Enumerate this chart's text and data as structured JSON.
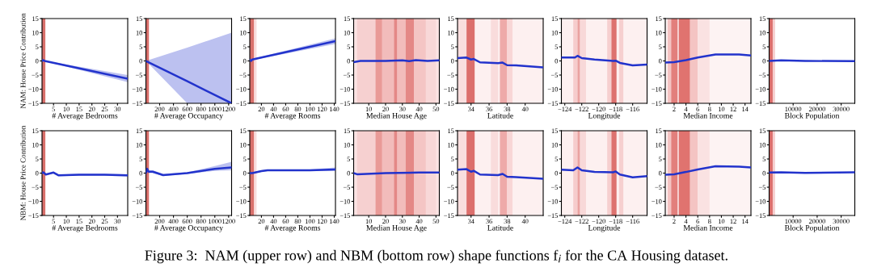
{
  "chart_data": [
    {
      "type": "line",
      "xlabel": "# Average Bedrooms",
      "ylabel": "NAM: House Price Contribution",
      "annotations": [
        "Figure 3:  NAM (upper row) and NBM (bottom row) shape functions f$_{i}$ for the CA Housing dataset."
      ],
      "xlim": [
        0.5,
        34
      ],
      "xticks": [
        5,
        10,
        15,
        20,
        25,
        30
      ],
      "ylim": [
        -15,
        15
      ],
      "yticks": [
        {
          "value": -15,
          "label": "−15"
        },
        {
          "value": -10,
          "label": "−10"
        },
        {
          "value": -5,
          "label": "−5"
        },
        0,
        5,
        10,
        15
      ],
      "bands": [
        {
          "axis": "x",
          "from": 0.5,
          "to": 1.8,
          "color": "#d9706b"
        }
      ],
      "series": [
        {
          "color": "#2233cc",
          "x": [
            0.5,
            1,
            1.5,
            34
          ],
          "values": [
            0,
            0.3,
            0,
            -6.3
          ],
          "lower": [
            0,
            0.2,
            -0.1,
            -7.5
          ],
          "upper": [
            0,
            0.4,
            0.1,
            -5
          ]
        }
      ]
    },
    {
      "type": "line",
      "xlabel": "# Average Occupancy",
      "xlim": [
        0.7,
        1243
      ],
      "xticks": [
        200,
        400,
        600,
        800,
        1000,
        1200
      ],
      "ylim": [
        -15,
        15
      ],
      "yticks": [
        {
          "value": -15,
          "label": "−15"
        },
        {
          "value": -10,
          "label": "−10"
        },
        {
          "value": -5,
          "label": "−5"
        },
        0,
        5,
        10,
        15
      ],
      "bands": [
        {
          "axis": "x",
          "from": 0.7,
          "to": 45,
          "color": "#d9706b"
        }
      ],
      "series": [
        {
          "color": "#2233cc",
          "x": [
            0.7,
            600,
            1243
          ],
          "values": [
            0,
            -7.2,
            -15
          ],
          "lower": [
            0,
            -15,
            -15
          ],
          "upper": [
            0,
            4.7,
            10
          ]
        }
      ]
    },
    {
      "type": "line",
      "xlabel": "# Average Rooms",
      "xlim": [
        0.8,
        142
      ],
      "xticks": [
        20,
        40,
        60,
        80,
        100,
        120,
        140
      ],
      "ylim": [
        -15,
        15
      ],
      "yticks": [
        {
          "value": -15,
          "label": "−15"
        },
        {
          "value": -10,
          "label": "−10"
        },
        {
          "value": -5,
          "label": "−5"
        },
        0,
        5,
        10,
        15
      ],
      "bands": [
        {
          "axis": "x",
          "from": 0.8,
          "to": 8,
          "color": "#d9706b"
        },
        {
          "axis": "x",
          "from": 8,
          "to": 12,
          "color": "#f8dcdc"
        }
      ],
      "series": [
        {
          "color": "#2233cc",
          "x": [
            0.8,
            3,
            5,
            142
          ],
          "values": [
            0.5,
            0,
            0.5,
            7
          ],
          "lower": [
            0.3,
            -0.2,
            0.3,
            6
          ],
          "upper": [
            0.7,
            0.2,
            0.7,
            8
          ]
        }
      ]
    },
    {
      "type": "line",
      "xlabel": "Median House Age",
      "xlim": [
        1,
        52
      ],
      "xticks": [
        10,
        20,
        30,
        40,
        50
      ],
      "ylim": [
        -15,
        15
      ],
      "yticks": [
        {
          "value": -15,
          "label": "−15"
        },
        {
          "value": -10,
          "label": "−10"
        },
        {
          "value": -5,
          "label": "−5"
        },
        0,
        5,
        10,
        15
      ],
      "bands": [
        {
          "axis": "x",
          "from": 1,
          "to": 52,
          "color": "#fbe4e4"
        },
        {
          "axis": "x",
          "from": 3,
          "to": 14,
          "color": "#f6d0d0"
        },
        {
          "axis": "x",
          "from": 14,
          "to": 18,
          "color": "#e99a97"
        },
        {
          "axis": "x",
          "from": 18,
          "to": 25,
          "color": "#f2bcbb"
        },
        {
          "axis": "x",
          "from": 25,
          "to": 27,
          "color": "#e48886"
        },
        {
          "axis": "x",
          "from": 27,
          "to": 32,
          "color": "#f2bcbb"
        },
        {
          "axis": "x",
          "from": 32,
          "to": 37,
          "color": "#e48886"
        },
        {
          "axis": "x",
          "from": 37,
          "to": 44,
          "color": "#f4c5c4"
        },
        {
          "axis": "x",
          "from": 44,
          "to": 50,
          "color": "#f8d8d8"
        }
      ],
      "series": [
        {
          "color": "#2233cc",
          "x": [
            1,
            5,
            20,
            30,
            34,
            38,
            45,
            52
          ],
          "values": [
            -0.4,
            0,
            0,
            0.2,
            -0.1,
            0.3,
            0,
            0.2
          ]
        }
      ]
    },
    {
      "type": "line",
      "xlabel": "Latitude",
      "xlim": [
        32.5,
        42
      ],
      "xticks": [
        34,
        36,
        38,
        40
      ],
      "ylim": [
        -15,
        15
      ],
      "yticks": [
        {
          "value": -15,
          "label": "−15"
        },
        {
          "value": -10,
          "label": "−10"
        },
        {
          "value": -5,
          "label": "−5"
        },
        0,
        5,
        10,
        15
      ],
      "bands": [
        {
          "axis": "x",
          "from": 32.5,
          "to": 42,
          "color": "#fdf0f0"
        },
        {
          "axis": "x",
          "from": 32.5,
          "to": 33.5,
          "color": "#f9dede"
        },
        {
          "axis": "x",
          "from": 33.5,
          "to": 34.4,
          "color": "#dc6f6c"
        },
        {
          "axis": "x",
          "from": 36.2,
          "to": 37,
          "color": "#f9dcdc"
        },
        {
          "axis": "x",
          "from": 37.2,
          "to": 38,
          "color": "#eeaaa9"
        },
        {
          "axis": "x",
          "from": 38,
          "to": 38.6,
          "color": "#f8d6d6"
        }
      ],
      "series": [
        {
          "color": "#2233cc",
          "x": [
            32.5,
            33.5,
            34,
            34.3,
            35,
            37,
            37.5,
            38,
            39,
            42
          ],
          "values": [
            1,
            1.2,
            0.5,
            0.7,
            -0.5,
            -0.8,
            -0.6,
            -1.5,
            -1.6,
            -2.3
          ]
        }
      ]
    },
    {
      "type": "line",
      "xlabel": "Longitude",
      "xlim": [
        -124.4,
        -114.3
      ],
      "xticks": [
        {
          "value": -124,
          "label": "−124"
        },
        {
          "value": -122,
          "label": "−122"
        },
        {
          "value": -120,
          "label": "−120"
        },
        {
          "value": -118,
          "label": "−118"
        },
        {
          "value": -116,
          "label": "−116"
        }
      ],
      "ylim": [
        -15,
        15
      ],
      "yticks": [
        {
          "value": -15,
          "label": "−15"
        },
        {
          "value": -10,
          "label": "−10"
        },
        {
          "value": -5,
          "label": "−5"
        },
        0,
        5,
        10,
        15
      ],
      "bands": [
        {
          "axis": "x",
          "from": -124.4,
          "to": -114.3,
          "color": "#fdf0f0"
        },
        {
          "axis": "x",
          "from": -123,
          "to": -122.5,
          "color": "#f6cccc"
        },
        {
          "axis": "x",
          "from": -122.5,
          "to": -122.2,
          "color": "#eaa2a0"
        },
        {
          "axis": "x",
          "from": -122.2,
          "to": -121.5,
          "color": "#f8d8d8"
        },
        {
          "axis": "x",
          "from": -119,
          "to": -118.5,
          "color": "#f6cfcf"
        },
        {
          "axis": "x",
          "from": -118.5,
          "to": -117.9,
          "color": "#dd726f"
        },
        {
          "axis": "x",
          "from": -117.6,
          "to": -117.1,
          "color": "#f6cfcf"
        }
      ],
      "series": [
        {
          "color": "#2233cc",
          "x": [
            -124.4,
            -122.8,
            -122.5,
            -122,
            -120.5,
            -118.3,
            -118,
            -117.5,
            -116,
            -114.3
          ],
          "values": [
            1.2,
            1.2,
            1.8,
            1,
            0.5,
            0,
            0.1,
            -0.7,
            -1.6,
            -1.3
          ]
        }
      ]
    },
    {
      "type": "line",
      "xlabel": "Median Income",
      "xlim": [
        0.5,
        15
      ],
      "xticks": [
        2,
        4,
        6,
        8,
        10,
        12,
        14
      ],
      "ylim": [
        -15,
        15
      ],
      "yticks": [
        {
          "value": -15,
          "label": "−15"
        },
        {
          "value": -10,
          "label": "−10"
        },
        {
          "value": -5,
          "label": "−5"
        },
        0,
        5,
        10,
        15
      ],
      "bands": [
        {
          "axis": "x",
          "from": 0.5,
          "to": 15,
          "color": "#fdf3f3"
        },
        {
          "axis": "x",
          "from": 0.9,
          "to": 1.5,
          "color": "#f4c4c3"
        },
        {
          "axis": "x",
          "from": 1.5,
          "to": 2.6,
          "color": "#e27f7c"
        },
        {
          "axis": "x",
          "from": 2.6,
          "to": 2.8,
          "color": "#f8d8d8"
        },
        {
          "axis": "x",
          "from": 2.8,
          "to": 4.7,
          "color": "#e0736f"
        },
        {
          "axis": "x",
          "from": 4.7,
          "to": 6,
          "color": "#f4c4c3"
        },
        {
          "axis": "x",
          "from": 6,
          "to": 8,
          "color": "#fae2e2"
        }
      ],
      "series": [
        {
          "color": "#2233cc",
          "x": [
            0.5,
            2,
            4,
            6,
            9,
            13,
            15
          ],
          "values": [
            -0.6,
            -0.4,
            0.3,
            1.2,
            2.3,
            2.3,
            1.9
          ]
        }
      ]
    },
    {
      "type": "line",
      "xlabel": "Block Population",
      "xlim": [
        3,
        35682
      ],
      "xticks": [
        10000,
        20000,
        30000
      ],
      "ylim": [
        -15,
        15
      ],
      "yticks": [
        {
          "value": -15,
          "label": "−15"
        },
        {
          "value": -10,
          "label": "−10"
        },
        {
          "value": -5,
          "label": "−5"
        },
        0,
        5,
        10,
        15
      ],
      "bands": [
        {
          "axis": "x",
          "from": 3,
          "to": 1500,
          "color": "#dc6f6c"
        },
        {
          "axis": "x",
          "from": 1500,
          "to": 2500,
          "color": "#f6cfcf"
        }
      ],
      "series": [
        {
          "color": "#2233cc",
          "x": [
            3,
            5000,
            15000,
            35682
          ],
          "values": [
            0,
            0.2,
            0,
            -0.1
          ]
        }
      ]
    },
    {
      "type": "line",
      "xlabel": "# Average Bedrooms",
      "ylabel": "NBM: House Price Contribution",
      "xlim": [
        0.5,
        34
      ],
      "xticks": [
        5,
        10,
        15,
        20,
        25,
        30
      ],
      "ylim": [
        -15,
        15
      ],
      "yticks": [
        {
          "value": -15,
          "label": "−15"
        },
        {
          "value": -10,
          "label": "−10"
        },
        {
          "value": -5,
          "label": "−5"
        },
        0,
        5,
        10,
        15
      ],
      "bands": [
        {
          "axis": "x",
          "from": 0.5,
          "to": 1.8,
          "color": "#d9706b"
        }
      ],
      "series": [
        {
          "color": "#2233cc",
          "x": [
            0.5,
            1,
            2,
            5,
            7,
            15,
            25,
            34
          ],
          "values": [
            0,
            0.3,
            -0.5,
            0.2,
            -0.8,
            -0.6,
            -0.6,
            -0.8
          ],
          "lower": [
            -0.3,
            0,
            -0.8,
            -0.1,
            -1.1,
            -0.9,
            -0.9,
            -1.2
          ],
          "upper": [
            0.3,
            0.6,
            -0.2,
            0.5,
            -0.5,
            -0.3,
            -0.3,
            -0.4
          ]
        }
      ]
    },
    {
      "type": "line",
      "xlabel": "# Average Occupancy",
      "xlim": [
        0.7,
        1243
      ],
      "xticks": [
        200,
        400,
        600,
        800,
        1000,
        1200
      ],
      "ylim": [
        -15,
        15
      ],
      "yticks": [
        {
          "value": -15,
          "label": "−15"
        },
        {
          "value": -10,
          "label": "−10"
        },
        {
          "value": -5,
          "label": "−5"
        },
        0,
        5,
        10,
        15
      ],
      "bands": [
        {
          "axis": "x",
          "from": 0.7,
          "to": 45,
          "color": "#d9706b"
        }
      ],
      "series": [
        {
          "color": "#2233cc",
          "x": [
            0.7,
            20,
            40,
            100,
            250,
            600,
            1000,
            1243
          ],
          "values": [
            0,
            1.5,
            0.5,
            0.5,
            -0.7,
            0,
            1.5,
            2
          ],
          "lower": [
            -0.5,
            0.5,
            0,
            0,
            -1,
            -0.3,
            0.8,
            1
          ],
          "upper": [
            0.5,
            2,
            1,
            1,
            -0.3,
            0.3,
            2.5,
            4
          ]
        }
      ]
    },
    {
      "type": "line",
      "xlabel": "# Average Rooms",
      "xlim": [
        0.8,
        142
      ],
      "xticks": [
        20,
        40,
        60,
        80,
        100,
        120,
        140
      ],
      "ylim": [
        -15,
        15
      ],
      "yticks": [
        {
          "value": -15,
          "label": "−15"
        },
        {
          "value": -10,
          "label": "−10"
        },
        {
          "value": -5,
          "label": "−5"
        },
        0,
        5,
        10,
        15
      ],
      "bands": [
        {
          "axis": "x",
          "from": 0.8,
          "to": 8,
          "color": "#d9706b"
        },
        {
          "axis": "x",
          "from": 8,
          "to": 12,
          "color": "#f8dcdc"
        }
      ],
      "series": [
        {
          "color": "#2233cc",
          "x": [
            0.8,
            5,
            20,
            30,
            100,
            142
          ],
          "values": [
            0,
            0,
            0.7,
            1,
            1,
            1.3
          ],
          "lower": [
            -0.3,
            -0.3,
            0.4,
            0.7,
            0.7,
            0.8
          ],
          "upper": [
            0.3,
            0.3,
            1,
            1.3,
            1.3,
            2
          ]
        }
      ]
    },
    {
      "type": "line",
      "xlabel": "Median House Age",
      "xlim": [
        1,
        52
      ],
      "xticks": [
        10,
        20,
        30,
        40,
        50
      ],
      "ylim": [
        -15,
        15
      ],
      "yticks": [
        {
          "value": -15,
          "label": "−15"
        },
        {
          "value": -10,
          "label": "−10"
        },
        {
          "value": -5,
          "label": "−5"
        },
        0,
        5,
        10,
        15
      ],
      "bands": [
        {
          "axis": "x",
          "from": 1,
          "to": 52,
          "color": "#fbe4e4"
        },
        {
          "axis": "x",
          "from": 3,
          "to": 14,
          "color": "#f6d0d0"
        },
        {
          "axis": "x",
          "from": 14,
          "to": 18,
          "color": "#e99a97"
        },
        {
          "axis": "x",
          "from": 18,
          "to": 25,
          "color": "#f2bcbb"
        },
        {
          "axis": "x",
          "from": 25,
          "to": 27,
          "color": "#e48886"
        },
        {
          "axis": "x",
          "from": 27,
          "to": 32,
          "color": "#f2bcbb"
        },
        {
          "axis": "x",
          "from": 32,
          "to": 37,
          "color": "#e48886"
        },
        {
          "axis": "x",
          "from": 37,
          "to": 44,
          "color": "#f4c5c4"
        },
        {
          "axis": "x",
          "from": 44,
          "to": 50,
          "color": "#f8d8d8"
        }
      ],
      "series": [
        {
          "color": "#2233cc",
          "x": [
            1,
            3,
            20,
            40,
            52
          ],
          "values": [
            0,
            -0.4,
            0,
            0.2,
            0.2
          ]
        }
      ]
    },
    {
      "type": "line",
      "xlabel": "Latitude",
      "xlim": [
        32.5,
        42
      ],
      "xticks": [
        34,
        36,
        38,
        40
      ],
      "ylim": [
        -15,
        15
      ],
      "yticks": [
        {
          "value": -15,
          "label": "−15"
        },
        {
          "value": -10,
          "label": "−10"
        },
        {
          "value": -5,
          "label": "−5"
        },
        0,
        5,
        10,
        15
      ],
      "bands": [
        {
          "axis": "x",
          "from": 32.5,
          "to": 42,
          "color": "#fdf0f0"
        },
        {
          "axis": "x",
          "from": 32.5,
          "to": 33.5,
          "color": "#f9dede"
        },
        {
          "axis": "x",
          "from": 33.5,
          "to": 34.4,
          "color": "#dc6f6c"
        },
        {
          "axis": "x",
          "from": 36.2,
          "to": 37,
          "color": "#f9dcdc"
        },
        {
          "axis": "x",
          "from": 37.2,
          "to": 38,
          "color": "#eeaaa9"
        },
        {
          "axis": "x",
          "from": 38,
          "to": 38.6,
          "color": "#f8d6d6"
        }
      ],
      "series": [
        {
          "color": "#2233cc",
          "x": [
            32.5,
            33.5,
            34,
            34.3,
            35,
            37,
            37.5,
            38,
            39,
            42
          ],
          "values": [
            1.2,
            1.4,
            0.5,
            0.8,
            -0.5,
            -0.7,
            -0.3,
            -1.3,
            -1.4,
            -2
          ]
        }
      ]
    },
    {
      "type": "line",
      "xlabel": "Longitude",
      "xlim": [
        -124.4,
        -114.3
      ],
      "xticks": [
        {
          "value": -124,
          "label": "−124"
        },
        {
          "value": -122,
          "label": "−122"
        },
        {
          "value": -120,
          "label": "−120"
        },
        {
          "value": -118,
          "label": "−118"
        },
        {
          "value": -116,
          "label": "−116"
        }
      ],
      "ylim": [
        -15,
        15
      ],
      "yticks": [
        {
          "value": -15,
          "label": "−15"
        },
        {
          "value": -10,
          "label": "−10"
        },
        {
          "value": -5,
          "label": "−5"
        },
        0,
        5,
        10,
        15
      ],
      "bands": [
        {
          "axis": "x",
          "from": -124.4,
          "to": -114.3,
          "color": "#fdf0f0"
        },
        {
          "axis": "x",
          "from": -123,
          "to": -122.5,
          "color": "#f6cccc"
        },
        {
          "axis": "x",
          "from": -122.5,
          "to": -122.2,
          "color": "#eaa2a0"
        },
        {
          "axis": "x",
          "from": -122.2,
          "to": -121.5,
          "color": "#f8d8d8"
        },
        {
          "axis": "x",
          "from": -119,
          "to": -118.5,
          "color": "#f6cfcf"
        },
        {
          "axis": "x",
          "from": -118.5,
          "to": -117.9,
          "color": "#dd726f"
        },
        {
          "axis": "x",
          "from": -117.6,
          "to": -117.1,
          "color": "#f6cfcf"
        }
      ],
      "series": [
        {
          "color": "#2233cc",
          "x": [
            -124.4,
            -123,
            -122.5,
            -122,
            -120.5,
            -118.3,
            -118,
            -117.5,
            -116,
            -114.3
          ],
          "values": [
            1.2,
            1,
            2,
            1,
            0.4,
            0.3,
            0.6,
            -0.5,
            -1.5,
            -1.1
          ]
        }
      ]
    },
    {
      "type": "line",
      "xlabel": "Median Income",
      "xlim": [
        0.5,
        15
      ],
      "xticks": [
        2,
        4,
        6,
        8,
        10,
        12,
        14
      ],
      "ylim": [
        -15,
        15
      ],
      "yticks": [
        {
          "value": -15,
          "label": "−15"
        },
        {
          "value": -10,
          "label": "−10"
        },
        {
          "value": -5,
          "label": "−5"
        },
        0,
        5,
        10,
        15
      ],
      "bands": [
        {
          "axis": "x",
          "from": 0.5,
          "to": 15,
          "color": "#fdf3f3"
        },
        {
          "axis": "x",
          "from": 0.9,
          "to": 1.5,
          "color": "#f4c4c3"
        },
        {
          "axis": "x",
          "from": 1.5,
          "to": 2.6,
          "color": "#e27f7c"
        },
        {
          "axis": "x",
          "from": 2.6,
          "to": 2.8,
          "color": "#f8d8d8"
        },
        {
          "axis": "x",
          "from": 2.8,
          "to": 4.7,
          "color": "#e0736f"
        },
        {
          "axis": "x",
          "from": 4.7,
          "to": 6,
          "color": "#f4c4c3"
        },
        {
          "axis": "x",
          "from": 6,
          "to": 8,
          "color": "#fae2e2"
        }
      ],
      "series": [
        {
          "color": "#2233cc",
          "x": [
            0.5,
            2,
            4,
            6,
            9,
            13,
            15
          ],
          "values": [
            -0.6,
            -0.4,
            0.4,
            1.3,
            2.4,
            2.3,
            2
          ]
        }
      ]
    },
    {
      "type": "line",
      "xlabel": "Block Population",
      "xlim": [
        3,
        35682
      ],
      "xticks": [
        10000,
        20000,
        30000
      ],
      "ylim": [
        -15,
        15
      ],
      "yticks": [
        {
          "value": -15,
          "label": "−15"
        },
        {
          "value": -10,
          "label": "−10"
        },
        {
          "value": -5,
          "label": "−5"
        },
        0,
        5,
        10,
        15
      ],
      "bands": [
        {
          "axis": "x",
          "from": 3,
          "to": 1500,
          "color": "#dc6f6c"
        },
        {
          "axis": "x",
          "from": 1500,
          "to": 2500,
          "color": "#f6cfcf"
        }
      ],
      "series": [
        {
          "color": "#2233cc",
          "x": [
            3,
            5000,
            15000,
            35682
          ],
          "values": [
            0.2,
            0.3,
            0.1,
            0.3
          ]
        }
      ]
    }
  ]
}
